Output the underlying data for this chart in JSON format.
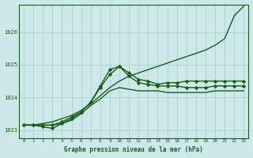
{
  "xlabel": "Graphe pression niveau de la mer (hPa)",
  "bg_color": "#cce8e8",
  "grid_color": "#aacccc",
  "line_color": "#1a5c1a",
  "text_color": "#1a5c1a",
  "xlim": [
    -0.5,
    23.5
  ],
  "ylim": [
    1022.75,
    1026.85
  ],
  "yticks": [
    1023,
    1024,
    1025,
    1026
  ],
  "xticks": [
    0,
    1,
    2,
    3,
    4,
    5,
    6,
    7,
    8,
    9,
    10,
    11,
    12,
    13,
    14,
    15,
    16,
    17,
    18,
    19,
    20,
    21,
    22,
    23
  ],
  "series": [
    {
      "x": [
        0,
        1,
        2,
        3,
        4,
        5,
        6,
        7,
        8,
        9,
        10,
        11,
        12,
        13,
        14,
        15,
        16,
        17,
        18,
        19,
        20,
        21,
        22,
        23
      ],
      "y": [
        1023.15,
        1023.15,
        1023.2,
        1023.25,
        1023.35,
        1023.45,
        1023.6,
        1023.8,
        1024.05,
        1024.3,
        1024.5,
        1024.65,
        1024.75,
        1024.85,
        1024.95,
        1025.05,
        1025.15,
        1025.25,
        1025.35,
        1025.45,
        1025.6,
        1025.8,
        1026.5,
        1026.8
      ],
      "marker": null,
      "linewidth": 1.0
    },
    {
      "x": [
        0,
        1,
        2,
        3,
        4,
        5,
        6,
        7,
        8,
        9,
        10,
        11,
        12,
        13,
        14,
        15,
        16,
        17,
        18,
        19,
        20,
        21,
        22,
        23
      ],
      "y": [
        1023.15,
        1023.15,
        1023.15,
        1023.15,
        1023.2,
        1023.3,
        1023.5,
        1023.75,
        1023.95,
        1024.2,
        1024.3,
        1024.25,
        1024.2,
        1024.2,
        1024.2,
        1024.15,
        1024.15,
        1024.15,
        1024.15,
        1024.15,
        1024.2,
        1024.2,
        1024.2,
        1024.2
      ],
      "marker": null,
      "linewidth": 1.0
    },
    {
      "x": [
        0,
        1,
        2,
        3,
        4,
        5,
        6,
        7,
        8,
        9,
        10,
        11,
        12,
        13,
        14,
        15,
        16,
        17,
        18,
        19,
        20,
        21,
        22,
        23
      ],
      "y": [
        1023.15,
        1023.15,
        1023.15,
        1023.15,
        1023.25,
        1023.4,
        1023.55,
        1023.85,
        1024.3,
        1024.7,
        1024.95,
        1024.75,
        1024.55,
        1024.5,
        1024.4,
        1024.45,
        1024.45,
        1024.5,
        1024.5,
        1024.5,
        1024.5,
        1024.5,
        1024.5,
        1024.5
      ],
      "marker": "D",
      "markersize": 2.2,
      "linewidth": 1.0
    },
    {
      "x": [
        0,
        1,
        2,
        3,
        4,
        5,
        6,
        7,
        8,
        9,
        10,
        11,
        12,
        13,
        14,
        15,
        16,
        17,
        18,
        19,
        20,
        21,
        22,
        23
      ],
      "y": [
        1023.15,
        1023.15,
        1023.1,
        1023.05,
        1023.2,
        1023.35,
        1023.55,
        1023.85,
        1024.35,
        1024.85,
        1024.95,
        1024.65,
        1024.45,
        1024.4,
        1024.35,
        1024.35,
        1024.35,
        1024.3,
        1024.3,
        1024.3,
        1024.35,
        1024.35,
        1024.35,
        1024.35
      ],
      "marker": "D",
      "markersize": 2.2,
      "linewidth": 1.0
    }
  ]
}
